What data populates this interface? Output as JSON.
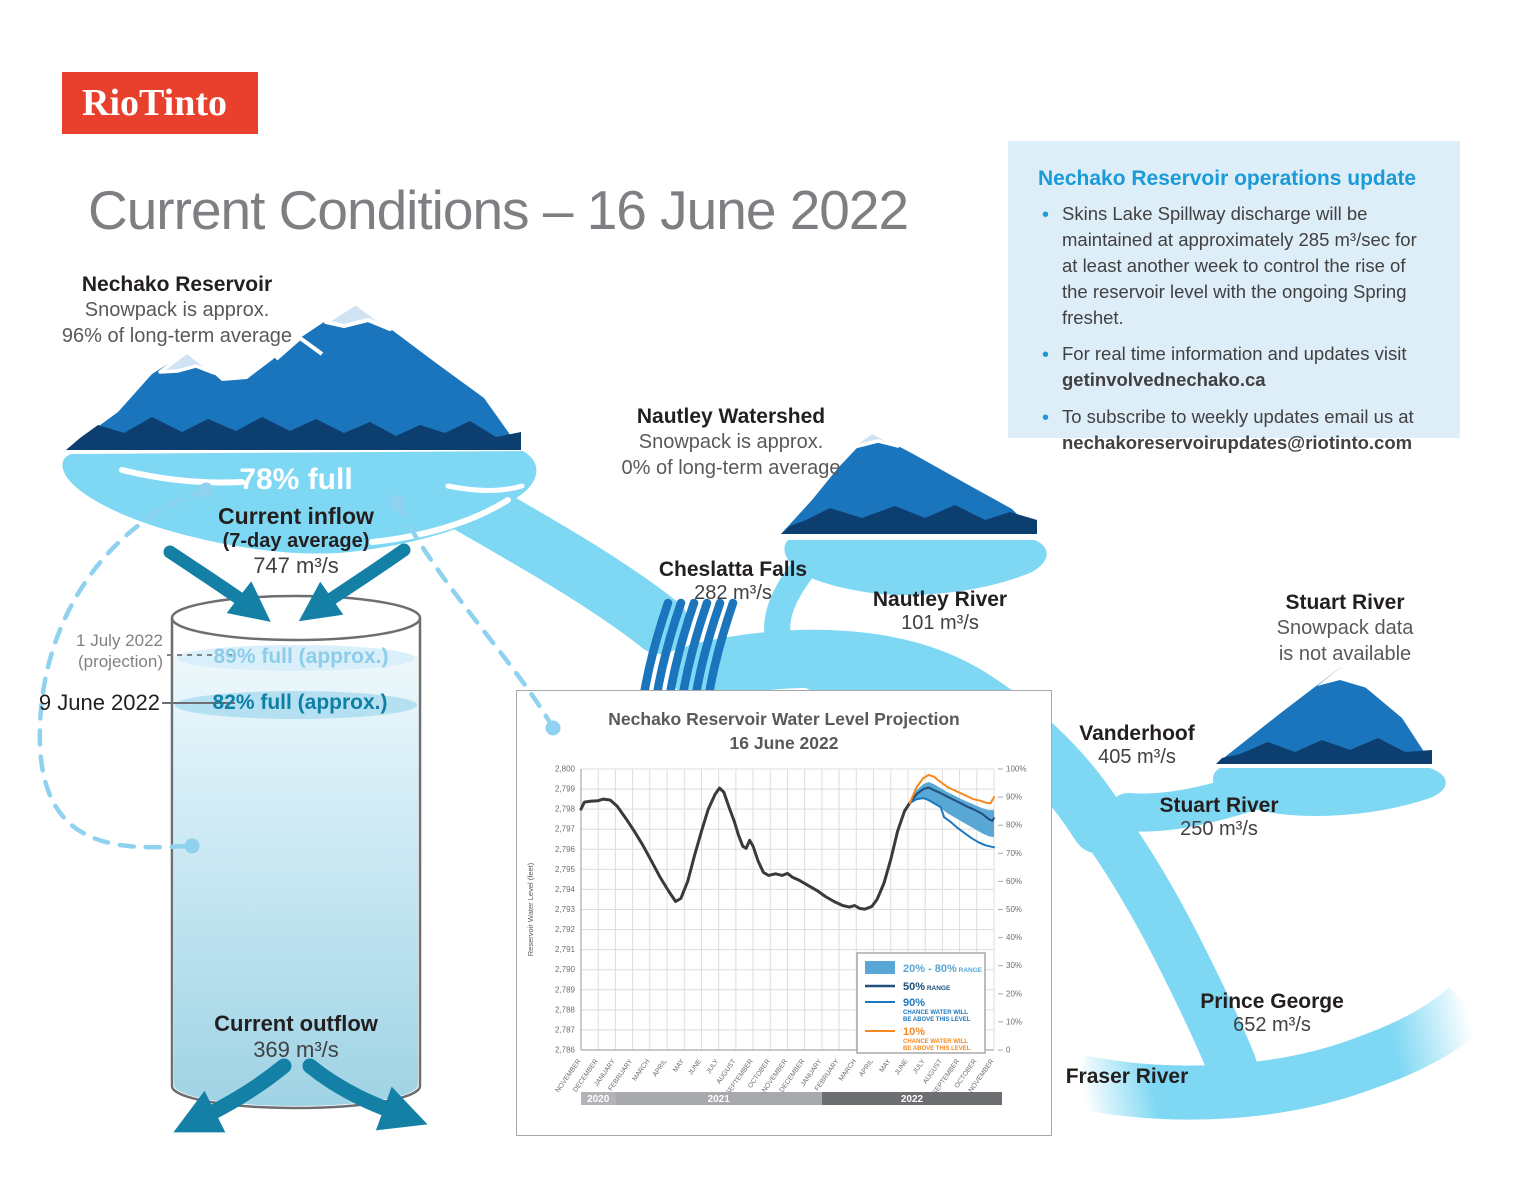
{
  "brand": {
    "logo_text": "RioTinto"
  },
  "page_title": "Current Conditions – 16 June 2022",
  "reservoir": {
    "name": "Nechako Reservoir",
    "snowpack_line1": "Snowpack is approx.",
    "snowpack_line2": "96% of long-term average",
    "fullness": "78% full",
    "inflow_label": "Current inflow",
    "inflow_sub": "(7-day average)",
    "inflow_value": "747 m³/s",
    "outflow_label": "Current outflow",
    "outflow_value": "369 m³/s",
    "projection_date_line1": "1 July 2022",
    "projection_date_line2": "(projection)",
    "projection_level": "89% full (approx.)",
    "current_date": "9 June 2022",
    "current_level": "82% full (approx.)"
  },
  "nautley": {
    "name": "Nautley Watershed",
    "snowpack_line1": "Snowpack is approx.",
    "snowpack_line2": "0% of long-term average",
    "river_label": "Nautley River",
    "river_value": "101 m³/s"
  },
  "cheslatta": {
    "label": "Cheslatta Falls",
    "value": "282 m³/s"
  },
  "stuart": {
    "name": "Stuart River",
    "snowpack_line1": "Snowpack data",
    "snowpack_line2": "is not available",
    "river_label": "Stuart River",
    "river_value": "250 m³/s"
  },
  "vanderhoof": {
    "label": "Vanderhoof",
    "value": "405 m³/s"
  },
  "prince_george": {
    "label": "Prince George",
    "value": "652 m³/s"
  },
  "fraser": {
    "label": "Fraser River"
  },
  "update_box": {
    "title": "Nechako Reservoir operations update",
    "bullets": [
      {
        "text": "Skins Lake Spillway discharge will be maintained at approximately 285 m³/sec for at least another week to control the rise of the reservoir level with the ongoing Spring freshet.",
        "bold": ""
      },
      {
        "text": "For real time information and updates visit",
        "bold": "getinvolvednechako.ca"
      },
      {
        "text": "To subscribe to weekly updates email us at",
        "bold": "nechakoreservoirupdates@riotinto.com"
      }
    ]
  },
  "chart_data": {
    "type": "line",
    "title": "Nechako Reservoir Water Level Projection",
    "subtitle": "16 June 2022",
    "ylabel": "Reservoir Water Level (feet)",
    "ylim": [
      2786,
      2800
    ],
    "y2lim": [
      0,
      100
    ],
    "grid": true,
    "legend_position": "lower right",
    "y_ticks": [
      "2,786",
      "2,787",
      "2,788",
      "2,789",
      "2,790",
      "2,791",
      "2,792",
      "2,793",
      "2,794",
      "2,795",
      "2,796",
      "2,797",
      "2,798",
      "2,799",
      "2,800"
    ],
    "y2_ticks": [
      "0",
      "10%",
      "20%",
      "30%",
      "40%",
      "50%",
      "60%",
      "70%",
      "80%",
      "90%",
      "100%"
    ],
    "x_months": [
      "NOVEMBER",
      "DECEMBER",
      "JANUARY",
      "FEBRUARY",
      "MARCH",
      "APRIL",
      "MAY",
      "JUNE",
      "JULY",
      "AUGUST",
      "SEPTEMBER",
      "OCTOBER",
      "NOVEMBER",
      "DECEMBER",
      "JANUARY",
      "FEBRUARY",
      "MARCH",
      "APRIL",
      "MAY",
      "JUNE",
      "JULY",
      "AUGUST",
      "SEPTEMBER",
      "OCTOBER",
      "NOVEMBER"
    ],
    "year_bands": [
      {
        "label": "2020",
        "from": 0,
        "to": 2,
        "color": "#b1b3b6"
      },
      {
        "label": "2021",
        "from": 2,
        "to": 14,
        "color": "#a7a9ac"
      },
      {
        "label": "2022",
        "from": 14,
        "to": 24.6,
        "color": "#6d6e71"
      }
    ],
    "legend": [
      {
        "label": "20% - 80%",
        "sub": "RANGE",
        "type": "band",
        "color": "#58a7d4"
      },
      {
        "label": "50%",
        "sub": "RANGE",
        "type": "line",
        "color": "#1f4e79"
      },
      {
        "label": "90%",
        "sub": "CHANCE WATER WILL|BE ABOVE THIS LEVEL",
        "type": "line",
        "color": "#1e78be"
      },
      {
        "label": "10%",
        "sub": "CHANCE WATER WILL|BE ABOVE THIS LEVEL",
        "type": "line",
        "color": "#f6881f"
      }
    ],
    "band": {
      "color": "#58a7d4",
      "upper": [
        [
          19.1,
          2798.35
        ],
        [
          19.5,
          2798.95
        ],
        [
          19.9,
          2799.25
        ],
        [
          20.2,
          2799.35
        ],
        [
          20.5,
          2799.25
        ],
        [
          20.9,
          2799.05
        ],
        [
          21.3,
          2798.85
        ],
        [
          21.7,
          2798.68
        ],
        [
          22.1,
          2798.5
        ],
        [
          22.5,
          2798.35
        ],
        [
          22.9,
          2798.2
        ],
        [
          23.3,
          2798.05
        ],
        [
          23.7,
          2797.95
        ],
        [
          24,
          2797.95
        ]
      ],
      "lower": [
        [
          19.1,
          2798.25
        ],
        [
          19.5,
          2798.45
        ],
        [
          19.9,
          2798.5
        ],
        [
          20.2,
          2798.4
        ],
        [
          20.5,
          2798.25
        ],
        [
          20.9,
          2798.05
        ],
        [
          21.3,
          2797.8
        ],
        [
          21.7,
          2797.6
        ],
        [
          22.1,
          2797.4
        ],
        [
          22.5,
          2797.2
        ],
        [
          22.9,
          2797.0
        ],
        [
          23.3,
          2796.8
        ],
        [
          23.7,
          2796.65
        ],
        [
          24,
          2796.6
        ]
      ]
    },
    "series": [
      {
        "name": "historical water level",
        "color": "#3a3a3c",
        "width": 3,
        "points": [
          [
            0,
            2798.0
          ],
          [
            0.2,
            2798.35
          ],
          [
            0.6,
            2798.4
          ],
          [
            1.0,
            2798.42
          ],
          [
            1.3,
            2798.5
          ],
          [
            1.7,
            2798.45
          ],
          [
            2.1,
            2798.15
          ],
          [
            2.6,
            2797.55
          ],
          [
            3.1,
            2796.9
          ],
          [
            3.6,
            2796.2
          ],
          [
            4.1,
            2795.4
          ],
          [
            4.6,
            2794.6
          ],
          [
            5.1,
            2793.9
          ],
          [
            5.5,
            2793.4
          ],
          [
            5.8,
            2793.55
          ],
          [
            6.2,
            2794.4
          ],
          [
            6.6,
            2795.7
          ],
          [
            7.0,
            2796.9
          ],
          [
            7.4,
            2798.0
          ],
          [
            7.8,
            2798.75
          ],
          [
            8.05,
            2799.05
          ],
          [
            8.3,
            2798.85
          ],
          [
            8.6,
            2798.1
          ],
          [
            8.9,
            2797.4
          ],
          [
            9.15,
            2796.7
          ],
          [
            9.4,
            2796.15
          ],
          [
            9.6,
            2796.05
          ],
          [
            9.8,
            2796.45
          ],
          [
            10.0,
            2796.15
          ],
          [
            10.3,
            2795.4
          ],
          [
            10.6,
            2794.85
          ],
          [
            10.9,
            2794.7
          ],
          [
            11.3,
            2794.78
          ],
          [
            11.7,
            2794.7
          ],
          [
            12.0,
            2794.8
          ],
          [
            12.3,
            2794.6
          ],
          [
            12.7,
            2794.45
          ],
          [
            13.2,
            2794.2
          ],
          [
            13.7,
            2793.95
          ],
          [
            14.2,
            2793.65
          ],
          [
            14.7,
            2793.4
          ],
          [
            15.2,
            2793.2
          ],
          [
            15.6,
            2793.12
          ],
          [
            15.9,
            2793.2
          ],
          [
            16.2,
            2793.05
          ],
          [
            16.5,
            2793.02
          ],
          [
            16.9,
            2793.15
          ],
          [
            17.2,
            2793.5
          ],
          [
            17.6,
            2794.3
          ],
          [
            18.0,
            2795.5
          ],
          [
            18.4,
            2796.9
          ],
          [
            18.8,
            2797.9
          ],
          [
            19.1,
            2798.3
          ]
        ]
      },
      {
        "name": "50% range",
        "color": "#1f4e79",
        "width": 2,
        "points": [
          [
            19.1,
            2798.3
          ],
          [
            19.5,
            2798.75
          ],
          [
            19.9,
            2799.0
          ],
          [
            20.2,
            2799.08
          ],
          [
            20.5,
            2798.95
          ],
          [
            20.9,
            2798.8
          ],
          [
            21.3,
            2798.62
          ],
          [
            21.7,
            2798.45
          ],
          [
            22.1,
            2798.28
          ],
          [
            22.5,
            2798.1
          ],
          [
            22.9,
            2797.95
          ],
          [
            23.3,
            2797.78
          ],
          [
            23.7,
            2797.5
          ],
          [
            23.9,
            2797.42
          ],
          [
            24,
            2797.55
          ]
        ]
      },
      {
        "name": "90% chance water will be above this level",
        "color": "#1e78be",
        "width": 2,
        "points": [
          [
            19.1,
            2798.3
          ],
          [
            19.5,
            2798.5
          ],
          [
            19.9,
            2798.55
          ],
          [
            20.2,
            2798.45
          ],
          [
            20.5,
            2798.3
          ],
          [
            20.9,
            2798.1
          ],
          [
            21.1,
            2797.6
          ],
          [
            21.5,
            2797.35
          ],
          [
            21.9,
            2797.05
          ],
          [
            22.3,
            2796.8
          ],
          [
            22.7,
            2796.55
          ],
          [
            23.1,
            2796.35
          ],
          [
            23.5,
            2796.2
          ],
          [
            24,
            2796.1
          ]
        ]
      },
      {
        "name": "10% chance water will be above this level",
        "color": "#f6881f",
        "width": 2,
        "points": [
          [
            19.1,
            2798.3
          ],
          [
            19.5,
            2799.1
          ],
          [
            19.9,
            2799.55
          ],
          [
            20.2,
            2799.7
          ],
          [
            20.5,
            2799.62
          ],
          [
            20.9,
            2799.35
          ],
          [
            21.3,
            2799.1
          ],
          [
            21.8,
            2798.9
          ],
          [
            22.3,
            2798.7
          ],
          [
            22.8,
            2798.5
          ],
          [
            23.2,
            2798.42
          ],
          [
            23.6,
            2798.3
          ],
          [
            23.8,
            2798.3
          ],
          [
            24,
            2798.6
          ]
        ]
      }
    ]
  },
  "colors": {
    "brand_red": "#e8402d",
    "mountain_blue": "#1b75bc",
    "mountain_navy": "#0d3e70",
    "snow": "#cfe3f4",
    "water_light": "#7fd8f3",
    "teal_arrow": "#1480a6",
    "info_bg": "#ddeef8",
    "info_accent": "#1a9bd7"
  }
}
